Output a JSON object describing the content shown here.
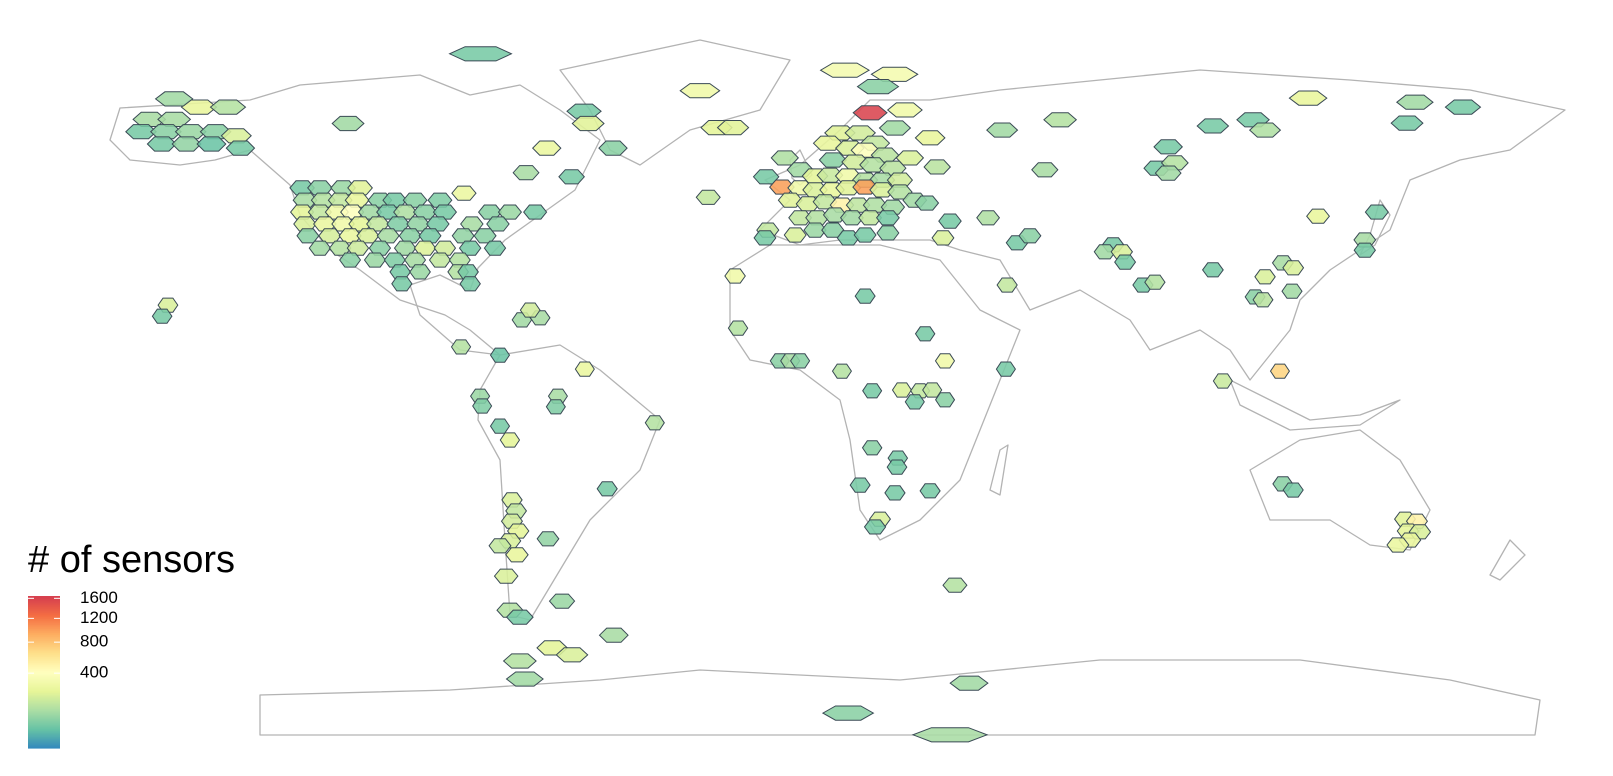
{
  "chart_data": {
    "type": "hexbin-map",
    "x": [
      -162,
      -156,
      -150,
      -143,
      -164,
      -158,
      -152,
      -146,
      -159,
      -153,
      -147,
      -141,
      -140,
      -156,
      -114,
      -82,
      -57,
      -56,
      -50,
      -29,
      -25,
      -21,
      -66,
      -71,
      -60,
      -86,
      -27,
      6,
      18,
      14,
      -125.1,
      -120.8,
      -115.2,
      -111.1,
      -124.4,
      -120,
      -115.9,
      -111.8,
      -106.3,
      -102.7,
      -97.8,
      -91.8,
      -125.1,
      -120.8,
      -116.7,
      -113,
      -108.7,
      -104.3,
      -100.2,
      -95.4,
      -90.6,
      -79.7,
      -74.9,
      -68.8,
      -124.4,
      -119.6,
      -115.2,
      -111.1,
      -106.8,
      -101.9,
      -97.1,
      -92.3,
      -84.1,
      -77.8,
      -123.7,
      -118.4,
      -113.5,
      -109.2,
      -104.3,
      -99,
      -94.2,
      -86.2,
      -80.9,
      -120.8,
      -115.9,
      -111.6,
      -106.3,
      -100.2,
      -95.4,
      -90.6,
      -84.5,
      -78.5,
      -113.5,
      -107.5,
      -102.7,
      -97.8,
      -91.8,
      -87,
      -101.4,
      -96.6,
      -87.4,
      -85,
      -84.5,
      -101,
      -157.5,
      -158.9,
      -72,
      -67.6,
      -70,
      -86.7,
      -77.3,
      -56.8,
      -63.3,
      -63.8,
      -82.1,
      -81.6,
      -77.3,
      -74.9,
      -39.9,
      -51.4,
      -74.4,
      -73.4,
      -74.4,
      -72.9,
      -74.9,
      -77.3,
      -73.2,
      -75.8,
      -65.7,
      -62.3,
      -74.9,
      -72.5,
      -49.8,
      -64.7,
      -59.9,
      -72.5,
      -71.3,
      12.1,
      20.5,
      18.1,
      4.8,
      9.7,
      13.3,
      1.9,
      7.2,
      10.9,
      15.7,
      21.7,
      -8.5,
      26.6,
      28.3,
      3.1,
      8.5,
      12.8,
      17.6,
      -13,
      -4.8,
      -1.2,
      2.4,
      6.8,
      10.9,
      15,
      19.3,
      -9.2,
      -4.8,
      -1.2,
      2.9,
      6.8,
      10.9,
      15,
      19.3,
      22.9,
      -7.2,
      -2.9,
      1.2,
      5.3,
      9.2,
      13.3,
      17.6,
      25.8,
      -4.8,
      -0.7,
      3.6,
      7.7,
      12.1,
      16.4,
      31.4,
      -12.6,
      -13.3,
      -6,
      -1.2,
      3.1,
      6.8,
      10.9,
      16.4,
      40.6,
      29.7,
      47.6,
      50.7,
      -20.5,
      10.9,
      -19.8,
      -9.7,
      -7.2,
      -4.8,
      25.4,
      30.2,
      44.9,
      5.3,
      12.6,
      19.8,
      24.2,
      27.1,
      30.2,
      22.9,
      12.6,
      18.8,
      18.6,
      9.7,
      18.1,
      26.6,
      14.5,
      13.3,
      45.2,
      32.6,
      44,
      58,
      54.3,
      84.1,
      81.4,
      85.7,
      84.1,
      94.9,
      104.6,
      107.5,
      117.9,
      143.7,
      155.3,
      141.8,
      120.3,
      134.5,
      131.6,
      131.6,
      70.8,
      68.8,
      72.9,
      73.7,
      78,
      80.9,
      94.9,
      107.5,
      111.8,
      114.3,
      114,
      105.1,
      107,
      97.3,
      111.1,
      111.8,
      114.3,
      141.3,
      144.2,
      142,
      144.9,
      142.5,
      139.6,
      36,
      6.8,
      31.4
    ],
    "y": [
      66,
      66,
      69,
      69,
      63,
      63,
      63,
      63,
      60,
      60,
      60,
      62,
      59,
      71,
      65,
      82,
      68,
      65,
      59,
      73,
      64,
      64,
      59,
      53,
      52,
      48,
      47,
      78,
      77,
      74,
      49.3,
      49.3,
      49.3,
      49.3,
      46.3,
      46.3,
      46.3,
      46.3,
      46.3,
      46.3,
      46.3,
      46.3,
      43.4,
      43.4,
      43.4,
      43.4,
      43.4,
      43.4,
      43.4,
      43.4,
      43.4,
      43.4,
      43.4,
      43.4,
      40.5,
      40.5,
      40.5,
      40.5,
      40.5,
      40.5,
      40.5,
      40.5,
      40.5,
      40.5,
      37.6,
      37.6,
      37.6,
      37.6,
      37.6,
      37.6,
      37.6,
      37.6,
      37.6,
      34.6,
      34.6,
      34.6,
      34.6,
      34.6,
      34.6,
      34.6,
      34.6,
      34.6,
      31.7,
      31.7,
      31.7,
      31.7,
      31.7,
      31.7,
      28.8,
      28.8,
      28.8,
      28.8,
      25.9,
      25.9,
      20.7,
      18,
      17.1,
      17.6,
      19.5,
      10.5,
      8.5,
      5.1,
      -1.5,
      -4.1,
      -1.5,
      -3.9,
      -8.8,
      -12.2,
      -8,
      -24.1,
      -26.8,
      -29.5,
      -32,
      -34.4,
      -36.8,
      -38,
      -40.2,
      -45.4,
      -36.3,
      -51.5,
      -53.7,
      -55.4,
      -59.8,
      -62.9,
      -64.6,
      -66.1,
      -70.5,
      67.6,
      68.3,
      63.9,
      62.7,
      62.7,
      60.2,
      60.2,
      59,
      58.5,
      57.3,
      56.6,
      56.6,
      61.5,
      54.4,
      56.1,
      55.6,
      54.9,
      54.1,
      52,
      53.7,
      52.2,
      52.4,
      52.2,
      51.2,
      51.2,
      51.2,
      49.5,
      49.3,
      48.8,
      48.8,
      49.3,
      49.5,
      48.8,
      48.3,
      46.3,
      46.3,
      45.4,
      45.9,
      45.1,
      45.1,
      45.1,
      44.6,
      45.6,
      42,
      42,
      42.7,
      42,
      42,
      42,
      41.2,
      39,
      37.1,
      37.8,
      39,
      39,
      37.1,
      37.8,
      38.3,
      42,
      37.1,
      35.9,
      37.6,
      27.8,
      22.9,
      15.1,
      7.1,
      7.1,
      7.1,
      13.7,
      7.1,
      5.1,
      4.6,
      -0.2,
      0,
      -0.2,
      0,
      -2.4,
      -2.9,
      -14.1,
      -16.6,
      -18.8,
      -23.2,
      -25.1,
      -24.6,
      -31.5,
      -33.4,
      25.6,
      -47.6,
      63.4,
      65.9,
      53.7,
      59.3,
      54.1,
      55.4,
      52.9,
      64.4,
      65.9,
      63.4,
      71.2,
      70.2,
      69,
      65.1,
      42.4,
      43.4,
      36.6,
      34.1,
      35.4,
      33.7,
      33.7,
      31.2,
      25.6,
      26.3,
      29.3,
      27.6,
      31,
      29.8,
      24.1,
      22.7,
      22,
      2.2,
      4.6,
      -22.9,
      -24.4,
      -31.5,
      -32,
      -34.4,
      -34.6,
      -36.6,
      -37.8,
      -71.5,
      -78.8,
      -84.1
    ],
    "values": [
      100,
      100,
      250,
      120,
      40,
      60,
      80,
      60,
      40,
      70,
      30,
      200,
      40,
      90,
      90,
      40,
      40,
      220,
      60,
      300,
      230,
      220,
      260,
      100,
      40,
      270,
      150,
      330,
      330,
      60,
      40,
      60,
      80,
      220,
      100,
      120,
      150,
      250,
      60,
      40,
      60,
      50,
      230,
      150,
      300,
      400,
      90,
      40,
      110,
      60,
      40,
      60,
      80,
      40,
      200,
      260,
      300,
      230,
      150,
      50,
      70,
      40,
      100,
      60,
      60,
      190,
      260,
      200,
      100,
      60,
      40,
      70,
      60,
      90,
      120,
      170,
      60,
      90,
      210,
      180,
      40,
      40,
      60,
      80,
      50,
      100,
      150,
      120,
      40,
      80,
      120,
      40,
      40,
      40,
      200,
      40,
      90,
      100,
      180,
      120,
      30,
      260,
      100,
      50,
      80,
      50,
      40,
      230,
      120,
      40,
      200,
      150,
      180,
      230,
      200,
      150,
      250,
      200,
      70,
      80,
      120,
      40,
      100,
      230,
      200,
      120,
      90,
      1600,
      300,
      90,
      220,
      180,
      150,
      250,
      200,
      400,
      130,
      200,
      110,
      250,
      130,
      60,
      180,
      120,
      130,
      40,
      90,
      230,
      160,
      300,
      120,
      100,
      180,
      1000,
      300,
      200,
      250,
      220,
      1000,
      200,
      120,
      90,
      220,
      200,
      150,
      500,
      140,
      110,
      90,
      60,
      150,
      120,
      100,
      90,
      150,
      40,
      40,
      150,
      40,
      200,
      80,
      60,
      40,
      40,
      60,
      110,
      200,
      40,
      60,
      300,
      40,
      120,
      60,
      100,
      60,
      40,
      300,
      40,
      120,
      40,
      200,
      150,
      150,
      60,
      40,
      60,
      40,
      40,
      40,
      40,
      40,
      200,
      40,
      150,
      120,
      90,
      120,
      100,
      40,
      40,
      120,
      90,
      40,
      40,
      110,
      250,
      90,
      40,
      40,
      250,
      40,
      100,
      40,
      40,
      90,
      200,
      40,
      40,
      120,
      40,
      200,
      100,
      200,
      90,
      60,
      130,
      160,
      700,
      60,
      40,
      220,
      500,
      230,
      200,
      250,
      260,
      90,
      60,
      100
    ],
    "legend": {
      "title": "# of sensors",
      "ticks": [
        400,
        800,
        1200,
        1600
      ],
      "lim": [
        0,
        1650
      ],
      "scale": "sqrt",
      "colors": [
        "#3288bd",
        "#66c2a5",
        "#abdda4",
        "#e6f598",
        "#ffffbf",
        "#fee08b",
        "#fdae61",
        "#f46d43",
        "#d53e4f"
      ]
    }
  }
}
